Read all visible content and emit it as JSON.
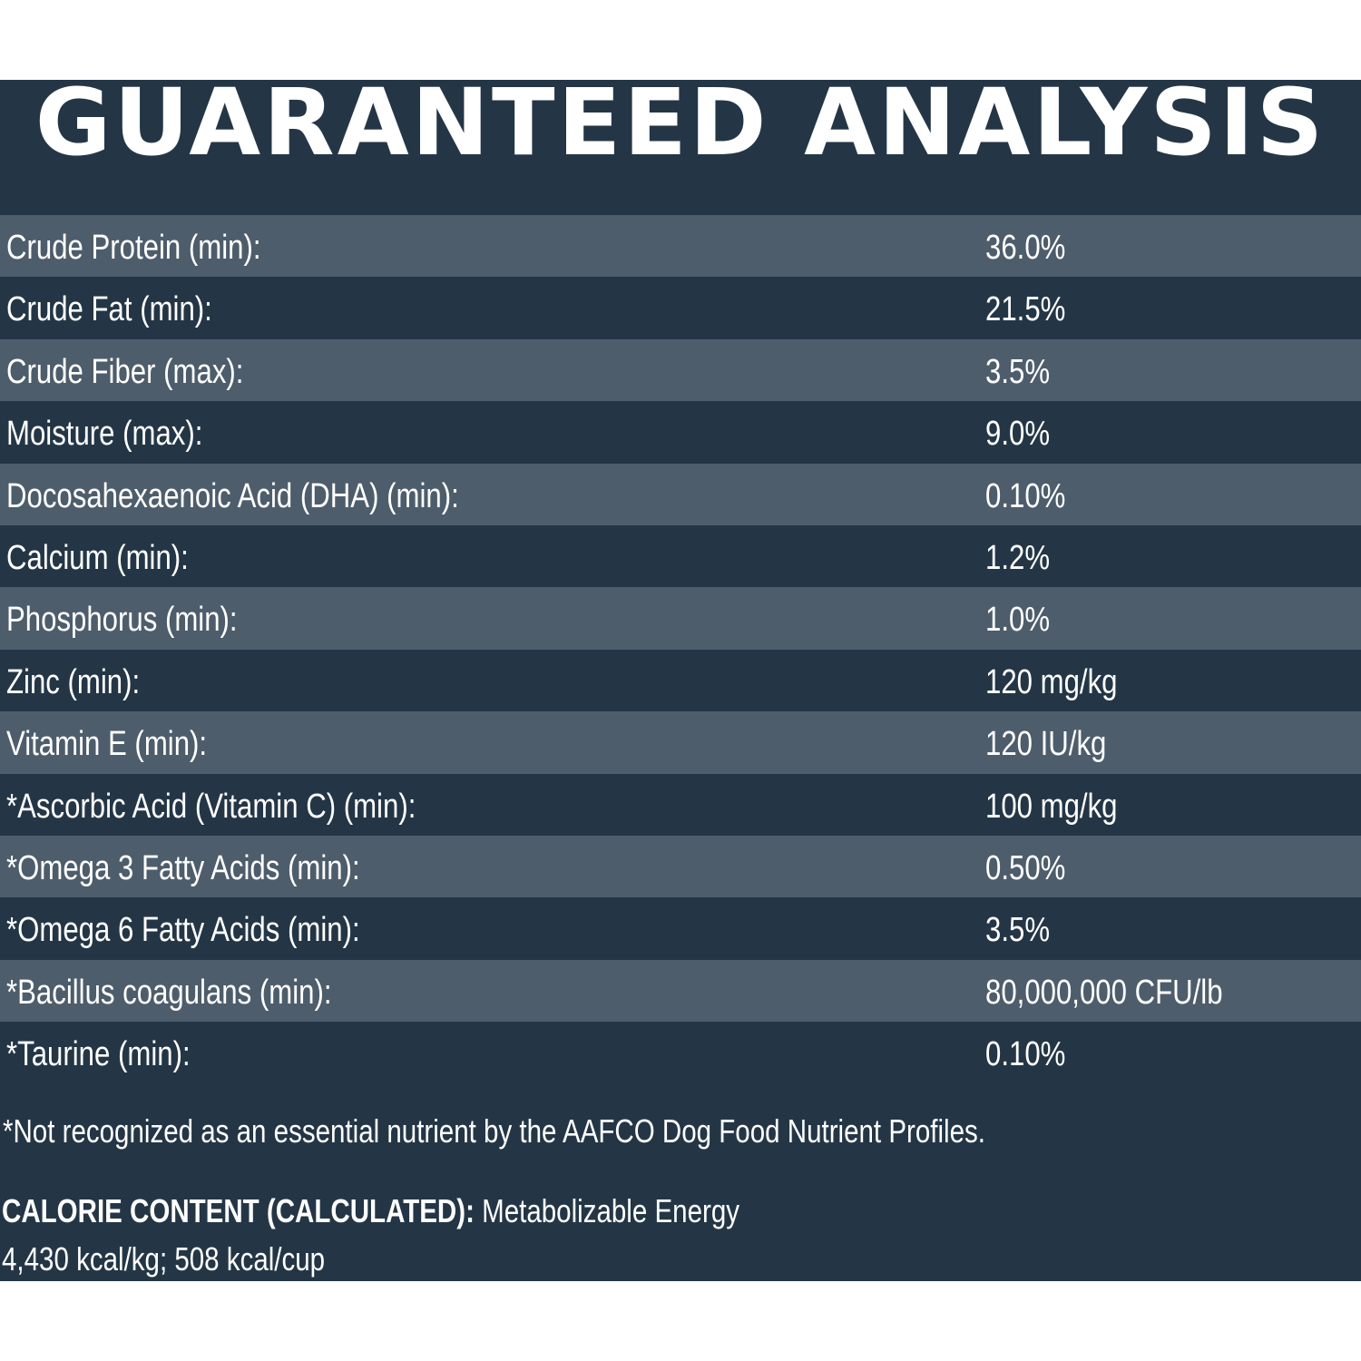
{
  "title": "GUARANTEED ANALYSIS",
  "rows": [
    {
      "label": "Crude Protein (min):",
      "value": "36.0%"
    },
    {
      "label": "Crude Fat (min):",
      "value": "21.5%"
    },
    {
      "label": "Crude Fiber (max):",
      "value": "3.5%"
    },
    {
      "label": "Moisture (max):",
      "value": "9.0%"
    },
    {
      "label": "Docosahexaenoic Acid (DHA) (min):",
      "value": "0.10%"
    },
    {
      "label": "Calcium (min):",
      "value": "1.2%"
    },
    {
      "label": "Phosphorus (min):",
      "value": "1.0%"
    },
    {
      "label": "Zinc (min):",
      "value": "120 mg/kg"
    },
    {
      "label": "Vitamin E (min):",
      "value": "120 IU/kg"
    },
    {
      "label": "*Ascorbic Acid (Vitamin C) (min):",
      "value": "100 mg/kg"
    },
    {
      "label": "*Omega 3 Fatty Acids (min):",
      "value": "0.50%"
    },
    {
      "label": "*Omega 6 Fatty Acids (min):",
      "value": "3.5%"
    },
    {
      "label": "*Bacillus coagulans (min):",
      "value": "80,000,000 CFU/lb"
    },
    {
      "label": "*Taurine (min):",
      "value": "0.10%"
    }
  ],
  "footnote": "*Not recognized as an essential nutrient by the AAFCO Dog Food Nutrient Profiles.",
  "calorie": {
    "heading": "CALORIE CONTENT (CALCULATED):",
    "text": " Metabolizable Energy",
    "values": "4,430 kcal/kg; 508 kcal/cup"
  },
  "colors": {
    "panel": "#243646",
    "row_shaded": "#4e5d6b",
    "text": "#ffffff"
  }
}
